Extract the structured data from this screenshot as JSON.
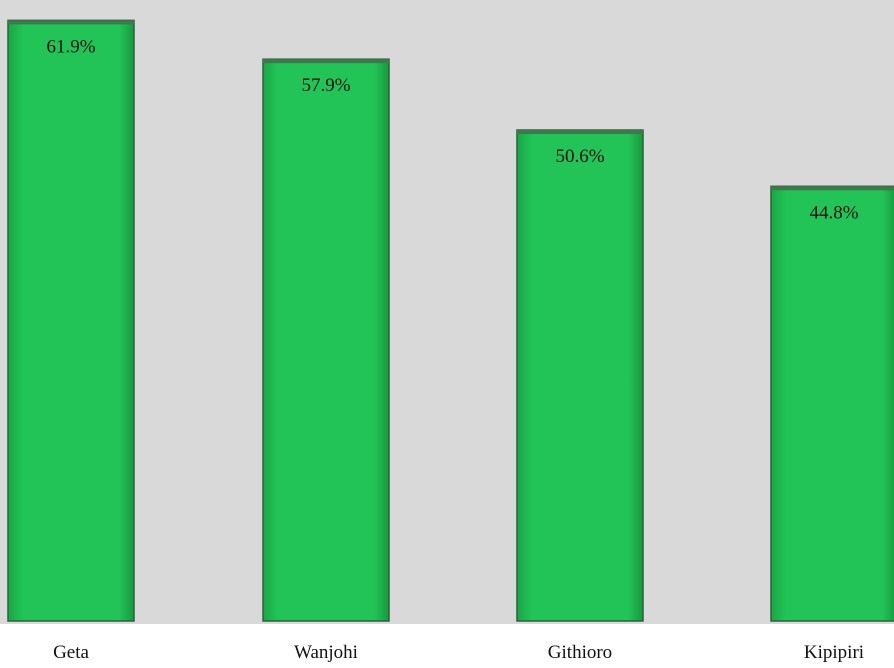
{
  "chart_data": {
    "type": "bar",
    "categories": [
      "Geta",
      "Wanjohi",
      "Githioro",
      "Kipipiri"
    ],
    "values": [
      61.9,
      57.9,
      50.6,
      44.8
    ],
    "value_labels": [
      "61.9%",
      "57.9%",
      "50.6%",
      "44.8%"
    ],
    "ylim": [
      0,
      64
    ],
    "grid": false,
    "legend": "none",
    "colors": {
      "plot_background": "#d9d9d9",
      "bar_fill": "#1fbf52",
      "bar_edge": "#2f5e3b",
      "page_background": "#ffffff"
    }
  }
}
